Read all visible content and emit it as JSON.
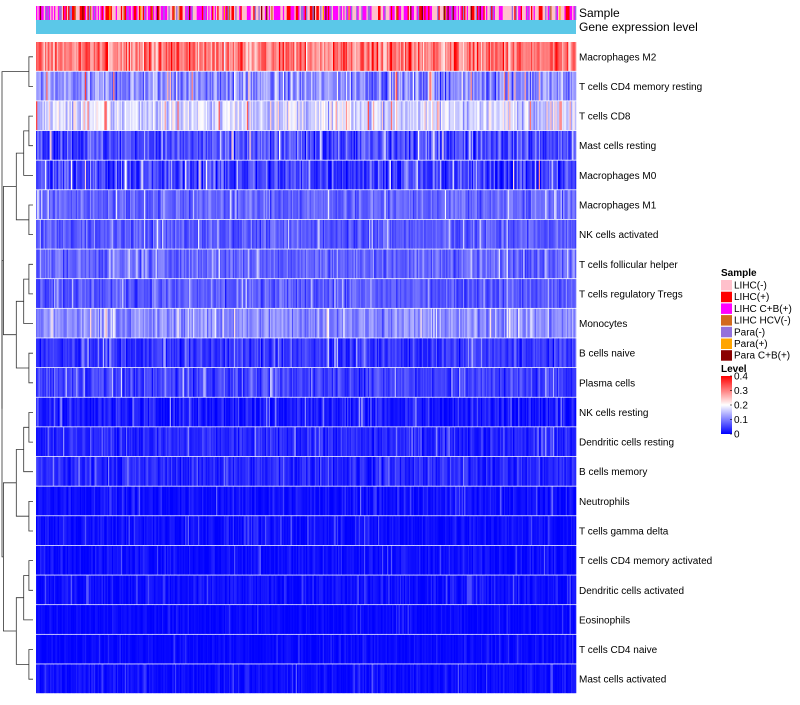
{
  "chart_data": {
    "type": "heatmap",
    "annotation_rows": [
      {
        "label": "Sample"
      },
      {
        "label": "Gene expression level"
      }
    ],
    "rows": [
      {
        "label": "Macrophages M2",
        "mean": 0.3,
        "spread": 0.1
      },
      {
        "label": "T cells CD4 memory resting",
        "mean": 0.11,
        "spread": 0.09
      },
      {
        "label": "T cells CD8",
        "mean": 0.17,
        "spread": 0.08
      },
      {
        "label": "Mast cells resting",
        "mean": 0.06,
        "spread": 0.08
      },
      {
        "label": "Macrophages M0",
        "mean": 0.05,
        "spread": 0.09
      },
      {
        "label": "Macrophages M1",
        "mean": 0.08,
        "spread": 0.05
      },
      {
        "label": "NK cells activated",
        "mean": 0.07,
        "spread": 0.05
      },
      {
        "label": "T cells follicular helper",
        "mean": 0.08,
        "spread": 0.05
      },
      {
        "label": "T cells regulatory  Tregs",
        "mean": 0.07,
        "spread": 0.05
      },
      {
        "label": "Monocytes",
        "mean": 0.11,
        "spread": 0.06
      },
      {
        "label": "B cells naive",
        "mean": 0.04,
        "spread": 0.05
      },
      {
        "label": "Plasma cells",
        "mean": 0.05,
        "spread": 0.05
      },
      {
        "label": "NK cells resting",
        "mean": 0.02,
        "spread": 0.05
      },
      {
        "label": "Dendritic cells resting",
        "mean": 0.03,
        "spread": 0.04
      },
      {
        "label": "B cells memory",
        "mean": 0.03,
        "spread": 0.04
      },
      {
        "label": "Neutrophils",
        "mean": 0.01,
        "spread": 0.03
      },
      {
        "label": "T cells gamma delta",
        "mean": 0.01,
        "spread": 0.03
      },
      {
        "label": "T cells CD4 memory activated",
        "mean": 0.01,
        "spread": 0.03
      },
      {
        "label": "Dendritic cells activated",
        "mean": 0.01,
        "spread": 0.03
      },
      {
        "label": "Eosinophils",
        "mean": 0.005,
        "spread": 0.02
      },
      {
        "label": "T cells CD4 naive",
        "mean": 0.005,
        "spread": 0.02
      },
      {
        "label": "Mast cells activated",
        "mean": 0.01,
        "spread": 0.03
      }
    ],
    "n_columns": 420,
    "legend_sample": {
      "title": "Sample",
      "items": [
        {
          "label": "LIHC(-)",
          "color": "#ffc0cb"
        },
        {
          "label": "LIHC(+)",
          "color": "#ff0000"
        },
        {
          "label": "LIHC C+B(+)",
          "color": "#ff00ff"
        },
        {
          "label": "LIHC HCV(-)",
          "color": "#d2691e"
        },
        {
          "label": "Para(-)",
          "color": "#9370db"
        },
        {
          "label": "Para(+)",
          "color": "#ffa500"
        },
        {
          "label": "Para C+B(+)",
          "color": "#8b0000"
        }
      ]
    },
    "legend_level": {
      "title": "Level",
      "ticks": [
        "0.4",
        "0.3",
        "0.2",
        "0.1",
        "0"
      ],
      "tick_values": [
        0.4,
        0.3,
        0.2,
        0.1,
        0
      ],
      "range": [
        0,
        0.4
      ]
    },
    "gene_expression_color": "#5bc8e8",
    "colorscale": [
      "#0000ff",
      "#ffffff",
      "#ff0000"
    ]
  }
}
